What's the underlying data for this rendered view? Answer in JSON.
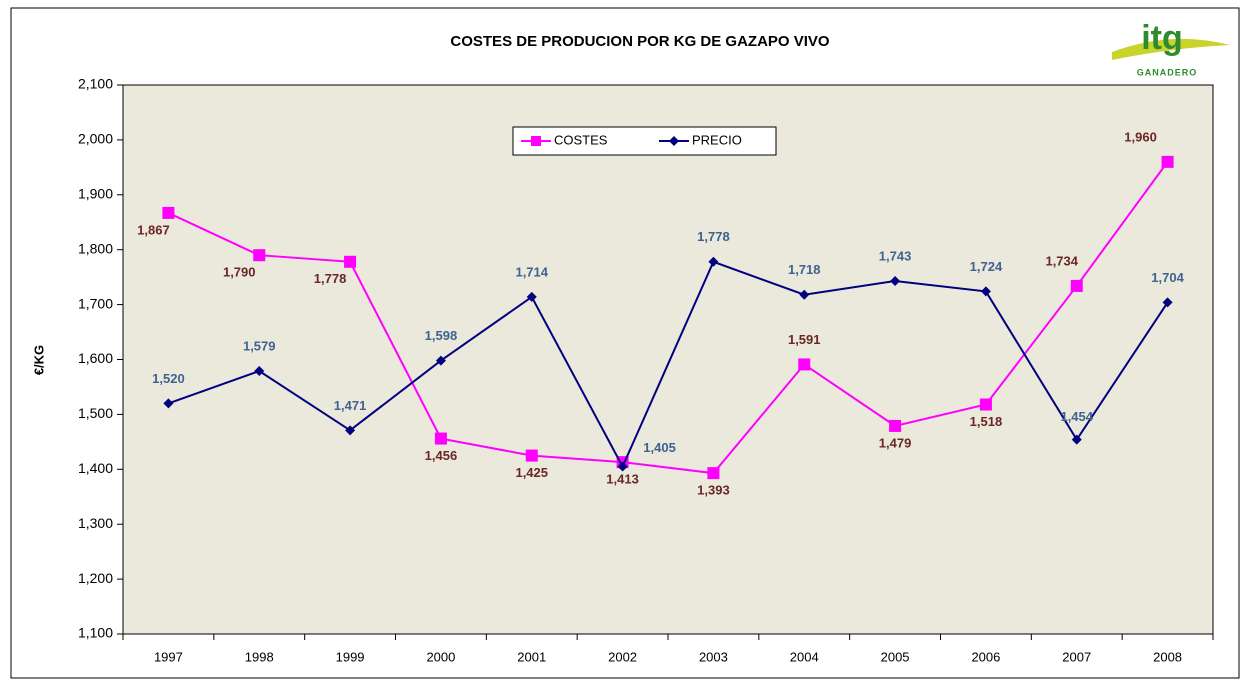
{
  "chart_data": {
    "type": "line",
    "title": "COSTES DE PRODUCION POR KG DE GAZAPO VIVO",
    "y_label": "€/KG",
    "logo": {
      "text": "itg",
      "subtitle": "GANADERO"
    },
    "categories": [
      "1997",
      "1998",
      "1999",
      "2000",
      "2001",
      "2002",
      "2003",
      "2004",
      "2005",
      "2006",
      "2007",
      "2008"
    ],
    "series": [
      {
        "name": "COSTES",
        "color": "#ff00ff",
        "label_color": "#6b2626",
        "marker": "square",
        "values": [
          1.867,
          1.79,
          1.778,
          1.456,
          1.425,
          1.413,
          1.393,
          1.591,
          1.479,
          1.518,
          1.734,
          1.96
        ],
        "value_labels": [
          "1,867",
          "1,790",
          "1,778",
          "1,456",
          "1,425",
          "1,413",
          "1,393",
          "1,591",
          "1,479",
          "1,518",
          "1,734",
          "1,960"
        ]
      },
      {
        "name": "PRECIO",
        "color": "#000080",
        "label_color": "#3f6291",
        "marker": "diamond",
        "values": [
          1.52,
          1.579,
          1.471,
          1.598,
          1.714,
          1.405,
          1.778,
          1.718,
          1.743,
          1.724,
          1.454,
          1.704
        ],
        "value_labels": [
          "1,520",
          "1,579",
          "1,471",
          "1,598",
          "1,714",
          "1,405",
          "1,778",
          "1,718",
          "1,743",
          "1,724",
          "1,454",
          "1,704"
        ]
      }
    ],
    "ylim": [
      1.1,
      2.1
    ],
    "yticks": [
      {
        "value": 1.1,
        "label": "1,100"
      },
      {
        "value": 1.2,
        "label": "1,200"
      },
      {
        "value": 1.3,
        "label": "1,300"
      },
      {
        "value": 1.4,
        "label": "1,400"
      },
      {
        "value": 1.5,
        "label": "1,500"
      },
      {
        "value": 1.6,
        "label": "1,600"
      },
      {
        "value": 1.7,
        "label": "1,700"
      },
      {
        "value": 1.8,
        "label": "1,800"
      },
      {
        "value": 1.9,
        "label": "1,900"
      },
      {
        "value": 2.0,
        "label": "2,000"
      },
      {
        "value": 2.1,
        "label": "2,100"
      }
    ],
    "grid": false,
    "legend": "top",
    "plot_background": "#ebe8dc"
  }
}
